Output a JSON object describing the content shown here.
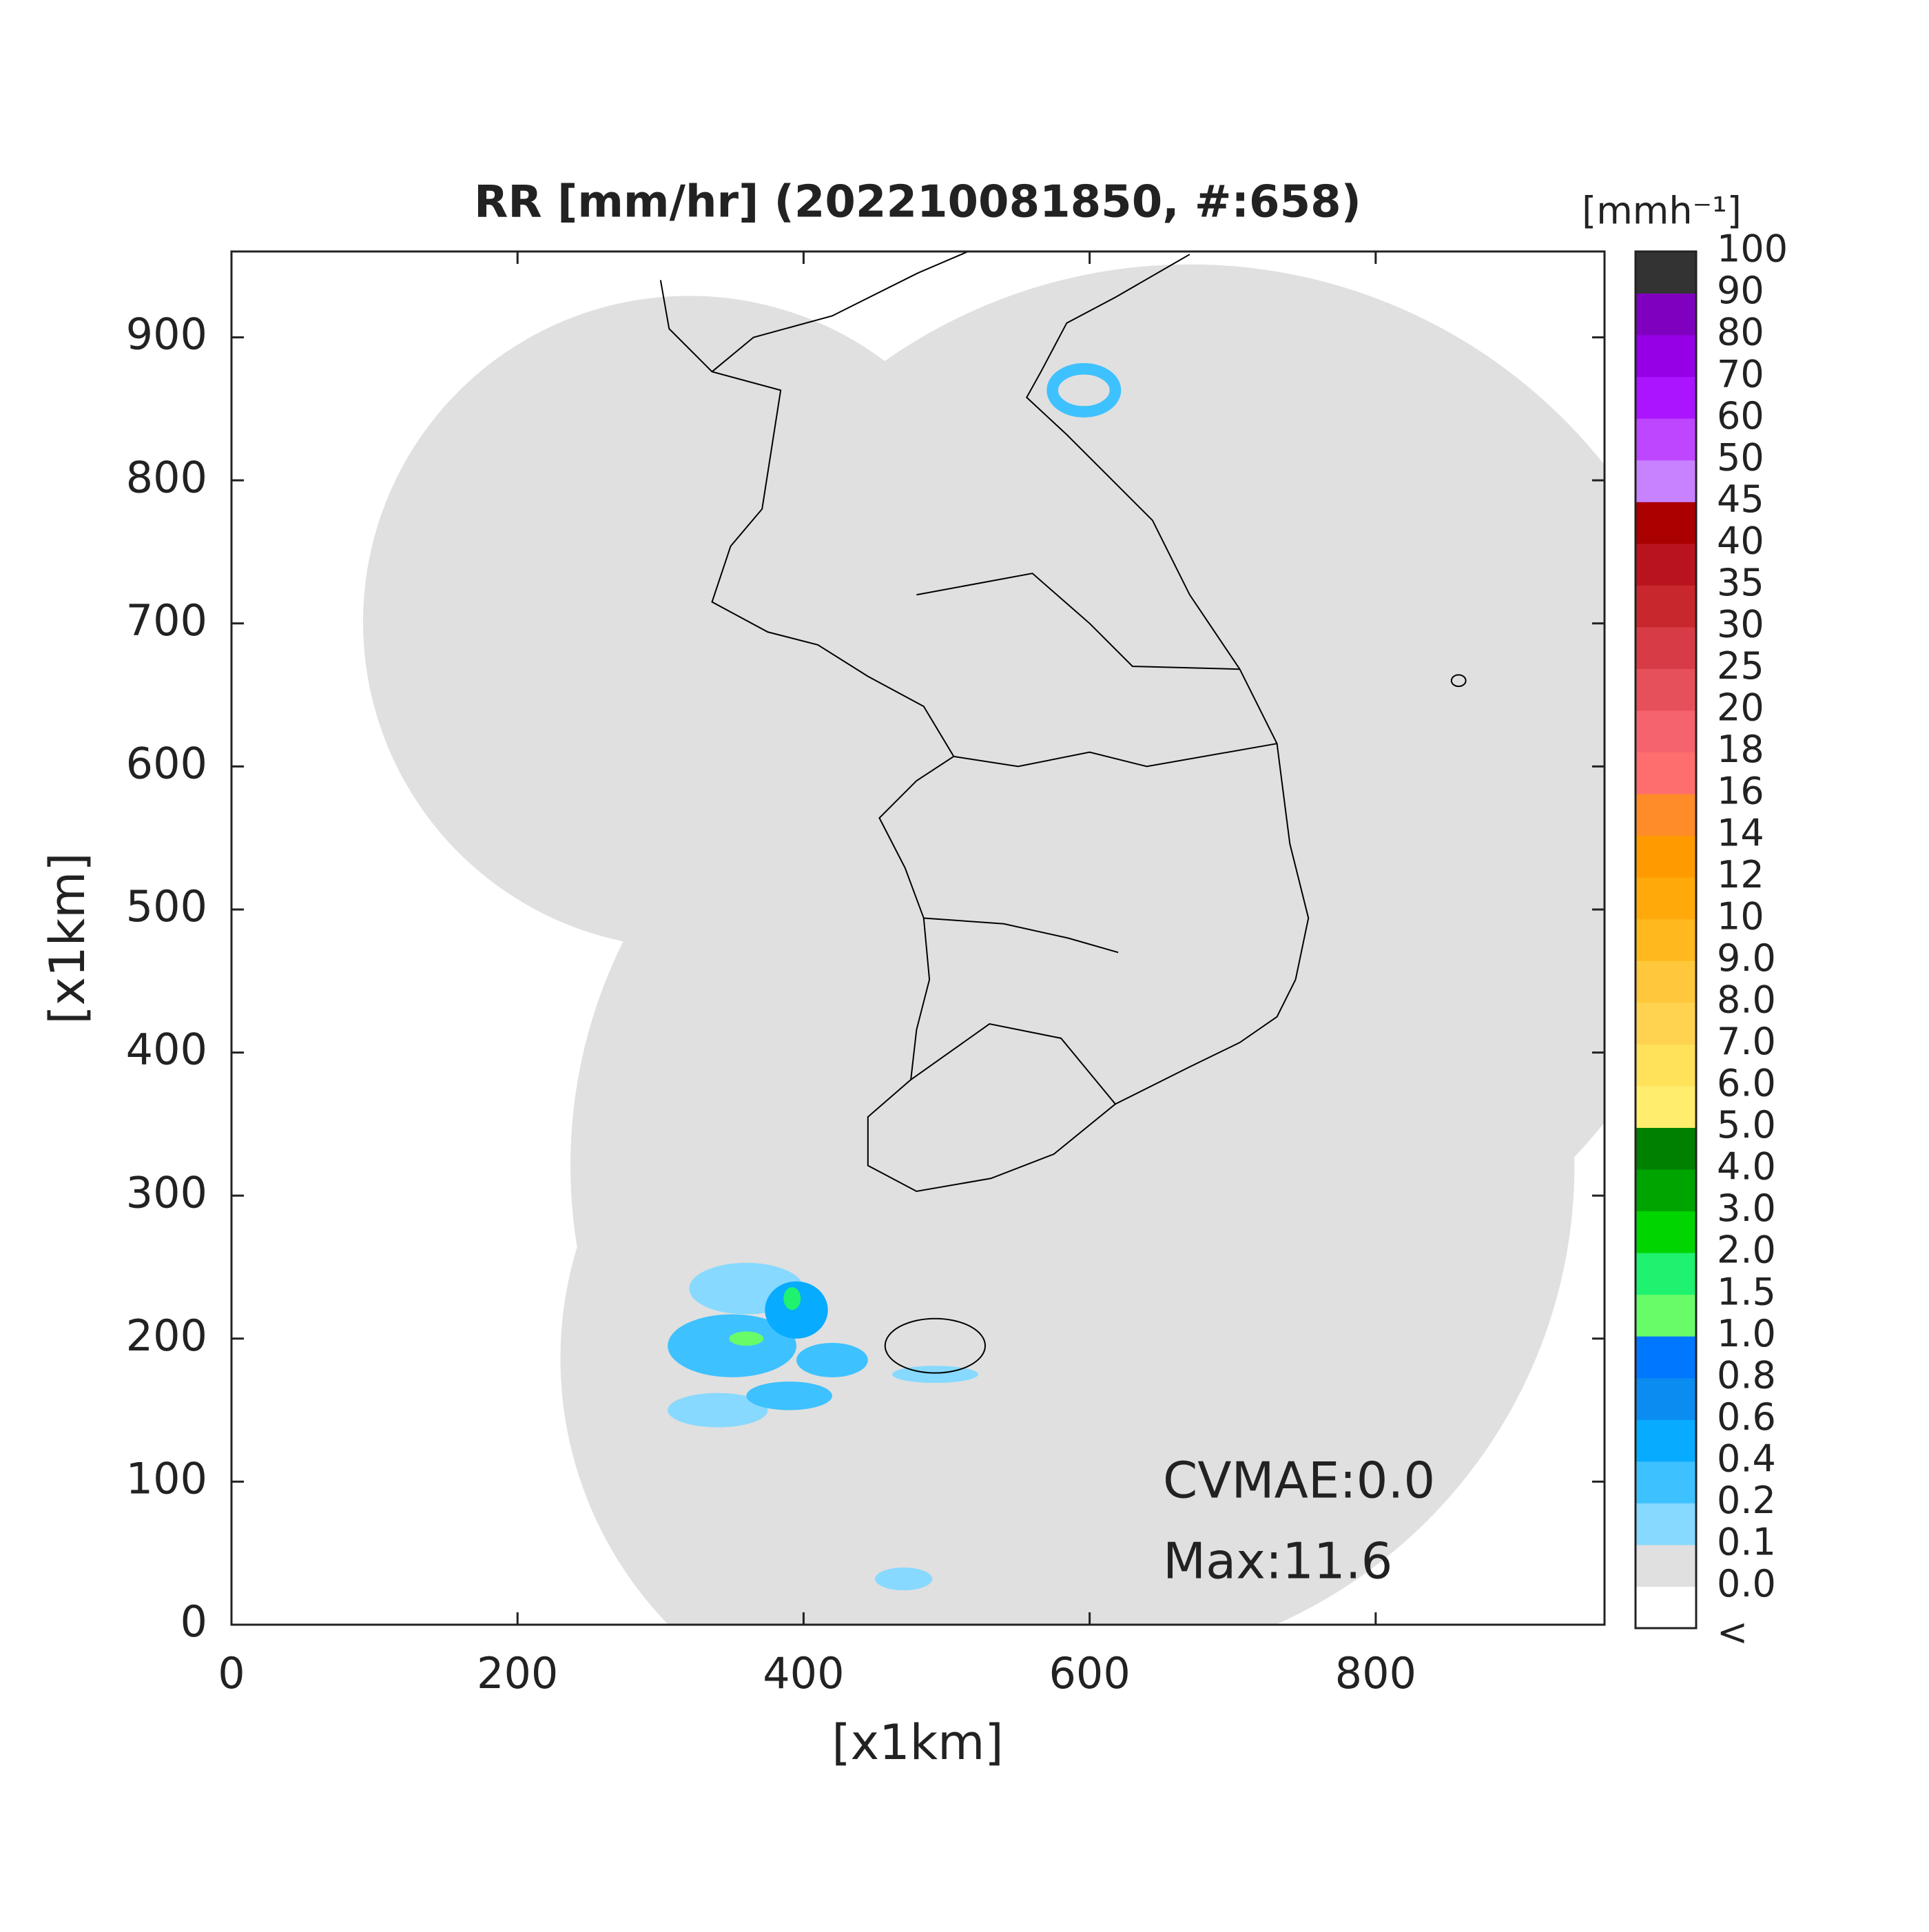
{
  "chart_data": {
    "type": "radar-map",
    "title": "RR [mm/hr] (202210081850, #:658)",
    "xlabel": "[x1km]",
    "ylabel": "[x1km]",
    "xlim": [
      0,
      960
    ],
    "ylim": [
      0,
      960
    ],
    "xticks": [
      0,
      200,
      400,
      600,
      800
    ],
    "yticks": [
      0,
      100,
      200,
      300,
      400,
      500,
      600,
      700,
      800,
      900
    ],
    "annotations": [
      "CVMAE:0.0",
      "Max:11.6"
    ],
    "colorbar": {
      "title": "[mmh⁻¹]",
      "labels": [
        "<",
        "0.0",
        "0.1",
        "0.2",
        "0.4",
        "0.6",
        "0.8",
        "1.0",
        "1.5",
        "2.0",
        "3.0",
        "4.0",
        "5.0",
        "6.0",
        "7.0",
        "8.0",
        "9.0",
        "10",
        "12",
        "14",
        "16",
        "18",
        "20",
        "25",
        "30",
        "35",
        "40",
        "45",
        "50",
        "60",
        "70",
        "80",
        "90",
        "100"
      ],
      "colors": [
        "#ffffff",
        "#e0e0e0",
        "#87d9ff",
        "#3ec1ff",
        "#07abff",
        "#0a8cf0",
        "#0077ff",
        "#69fc69",
        "#1ef26e",
        "#00d500",
        "#00a400",
        "#008000",
        "#ffee6e",
        "#ffe15a",
        "#ffd250",
        "#ffc83c",
        "#ffb81e",
        "#ffaa0a",
        "#ff9b00",
        "#ff8c28",
        "#ff6e6e",
        "#f5646e",
        "#e6505a",
        "#d73c46",
        "#c8282d",
        "#b9141e",
        "#aa0000",
        "#c882ff",
        "#be46ff",
        "#aa14ff",
        "#9600e6",
        "#8000c0",
        "#333333"
      ]
    }
  }
}
